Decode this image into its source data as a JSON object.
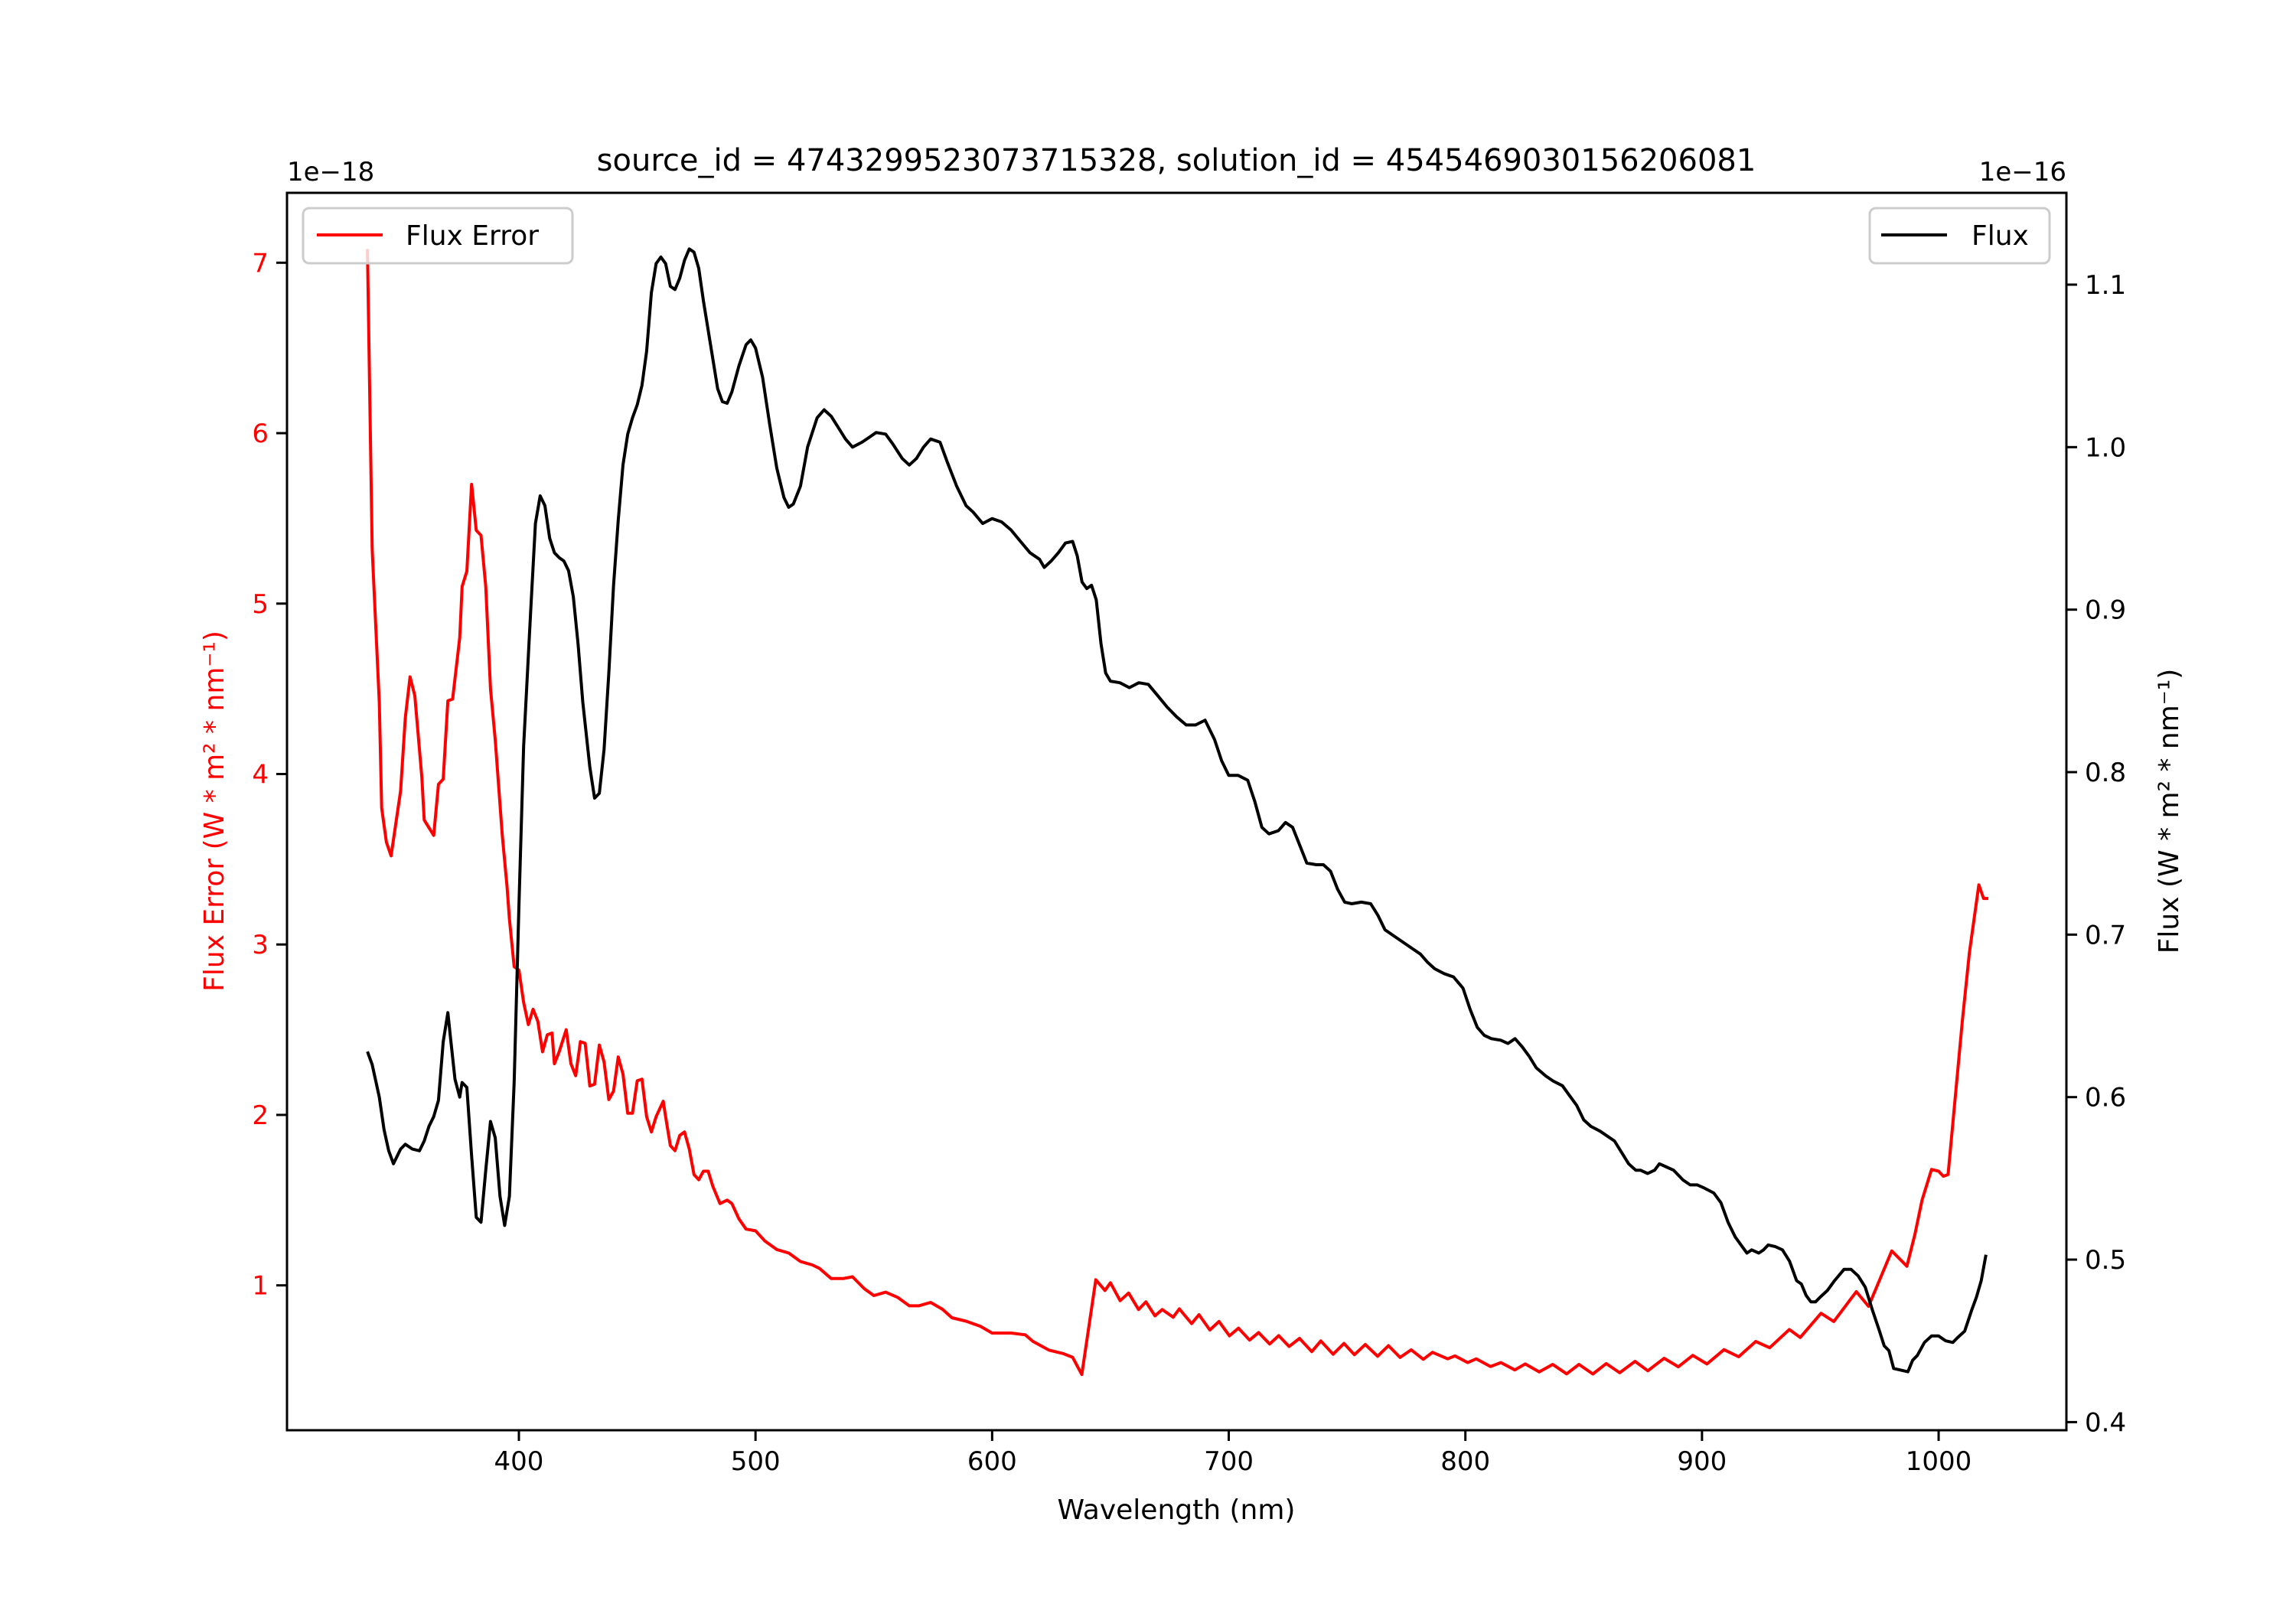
{
  "chart_data": {
    "type": "line",
    "title": "source_id = 4743299523073715328, solution_id = 4545469030156206081",
    "xlabel": "Wavelength (nm)",
    "xlim": [
      302,
      1054
    ],
    "xticks": [
      400,
      500,
      600,
      700,
      800,
      900,
      1000
    ],
    "left_axis": {
      "label": "Flux Error (W * m² * nm⁻¹)",
      "offset_text": "1e−18",
      "ylim": [
        0.15,
        7.41
      ],
      "ticks": [
        1,
        2,
        3,
        4,
        5,
        6,
        7
      ],
      "tick_labels": [
        "1",
        "2",
        "3",
        "4",
        "5",
        "6",
        "7"
      ],
      "color": "#ff0000"
    },
    "right_axis": {
      "label": "Flux (W * m² * nm⁻¹)",
      "offset_text": "1e−16",
      "ylim": [
        0.395,
        1.1565
      ],
      "ticks": [
        0.4,
        0.5,
        0.6,
        0.7,
        0.8,
        0.9,
        1.0,
        1.1
      ],
      "tick_labels": [
        "0.4",
        "0.5",
        "0.6",
        "0.7",
        "0.8",
        "0.9",
        "1.0",
        "1.1"
      ],
      "color": "#000000"
    },
    "series": [
      {
        "name": "Flux Error",
        "axis": "left",
        "color": "#ff0000",
        "legend": "upper-left",
        "x": [
          336,
          338,
          341,
          342,
          344,
          346,
          350,
          352,
          354,
          356,
          359,
          360,
          364,
          366,
          368,
          370,
          372,
          375,
          376,
          378,
          380,
          382,
          384,
          386,
          388,
          390,
          393,
          395,
          396,
          398,
          400,
          402,
          404,
          406,
          408,
          410,
          412,
          414,
          415,
          417,
          420,
          422,
          424,
          426,
          428,
          430,
          432,
          434,
          436,
          438,
          440,
          442,
          444,
          446,
          448,
          450,
          452,
          454,
          456,
          458,
          461,
          462,
          464,
          466,
          468,
          470,
          472,
          474,
          476,
          478,
          480,
          482,
          485,
          488,
          490,
          493,
          496,
          500,
          504,
          509,
          514,
          519,
          524,
          527,
          532,
          537,
          541,
          546,
          550,
          555,
          560,
          565,
          569,
          574,
          579,
          583,
          589,
          595,
          600,
          608,
          614,
          617.3,
          624,
          630,
          634,
          637.9,
          643.8,
          647.7,
          650,
          654.1,
          657.7,
          661.9,
          665,
          668.8,
          671.9,
          676.5,
          679.1,
          684.3,
          687.4,
          692,
          695.9,
          700.3,
          704.1,
          708.8,
          712.6,
          717.3,
          721.1,
          725.5,
          729.9,
          735.1,
          738.9,
          744.1,
          748.7,
          753.1,
          757.7,
          762.9,
          767.5,
          772.4,
          777.1,
          782.2,
          786.1,
          792.5,
          795.6,
          801,
          804.6,
          810.6,
          815,
          820.9,
          825.3,
          831.2,
          836.9,
          842.8,
          848,
          853.9,
          859.5,
          865.2,
          871.7,
          877.1,
          884,
          890,
          896.1,
          902.1,
          909.3,
          915.5,
          922.7,
          928.6,
          936.9,
          941.5,
          950.3,
          955.7,
          965.2,
          970.4,
          980.2,
          986.6,
          990,
          993,
          997,
          1000,
          1002,
          1004,
          1007,
          1010,
          1013,
          1015,
          1017,
          1019,
          1021
        ],
        "y": [
          7.08,
          5.32,
          4.42,
          3.8,
          3.6,
          3.52,
          3.9,
          4.33,
          4.57,
          4.46,
          3.98,
          3.73,
          3.64,
          3.94,
          3.97,
          4.43,
          4.44,
          4.8,
          5.1,
          5.19,
          5.7,
          5.43,
          5.4,
          5.1,
          4.5,
          4.2,
          3.64,
          3.34,
          3.15,
          2.87,
          2.85,
          2.66,
          2.53,
          2.62,
          2.55,
          2.37,
          2.47,
          2.48,
          2.3,
          2.37,
          2.5,
          2.3,
          2.23,
          2.43,
          2.42,
          2.17,
          2.18,
          2.41,
          2.31,
          2.09,
          2.14,
          2.34,
          2.24,
          2.01,
          2.01,
          2.2,
          2.21,
          1.99,
          1.9,
          1.99,
          2.08,
          1.99,
          1.82,
          1.79,
          1.88,
          1.9,
          1.8,
          1.65,
          1.62,
          1.67,
          1.67,
          1.58,
          1.48,
          1.5,
          1.48,
          1.39,
          1.33,
          1.32,
          1.26,
          1.21,
          1.19,
          1.14,
          1.12,
          1.1,
          1.04,
          1.04,
          1.05,
          0.98,
          0.94,
          0.96,
          0.93,
          0.88,
          0.88,
          0.9,
          0.86,
          0.81,
          0.79,
          0.76,
          0.72,
          0.72,
          0.71,
          0.671,
          0.62,
          0.6,
          0.578,
          0.477,
          1.033,
          0.97,
          1.015,
          0.91,
          0.955,
          0.858,
          0.903,
          0.821,
          0.858,
          0.813,
          0.862,
          0.776,
          0.828,
          0.738,
          0.788,
          0.704,
          0.749,
          0.679,
          0.723,
          0.656,
          0.705,
          0.641,
          0.689,
          0.611,
          0.674,
          0.596,
          0.659,
          0.593,
          0.653,
          0.584,
          0.646,
          0.577,
          0.622,
          0.566,
          0.607,
          0.569,
          0.586,
          0.547,
          0.569,
          0.524,
          0.547,
          0.504,
          0.539,
          0.492,
          0.536,
          0.481,
          0.536,
          0.48,
          0.541,
          0.487,
          0.554,
          0.499,
          0.572,
          0.522,
          0.589,
          0.539,
          0.623,
          0.581,
          0.671,
          0.634,
          0.741,
          0.694,
          0.836,
          0.788,
          0.963,
          0.877,
          1.202,
          1.112,
          1.3,
          1.5,
          1.68,
          1.67,
          1.64,
          1.65,
          2.1,
          2.55,
          2.95,
          3.15,
          3.35,
          3.27,
          3.27
        ]
      },
      {
        "name": "Flux",
        "axis": "right",
        "color": "#000000",
        "legend": "upper-right",
        "x": [
          336,
          338,
          341,
          343,
          345,
          347,
          350,
          352,
          355,
          358,
          360,
          362,
          364,
          366,
          368,
          370,
          371,
          373,
          375,
          376,
          378,
          380,
          382,
          384,
          386,
          388,
          390,
          392,
          394,
          396,
          398,
          400,
          402,
          405,
          407,
          409,
          411,
          413,
          415,
          417,
          419,
          421,
          423,
          425,
          427,
          430,
          432,
          434,
          436,
          438,
          440,
          442,
          444,
          446,
          448,
          450,
          452,
          454,
          456,
          458,
          460,
          462,
          464,
          466,
          468,
          470,
          472,
          474,
          476,
          478,
          481,
          484,
          486,
          488,
          490,
          493,
          496,
          498,
          500,
          503,
          506,
          509,
          512,
          514,
          516,
          519,
          522,
          526,
          529,
          532,
          535,
          538,
          541,
          545,
          548,
          551,
          555,
          558,
          562,
          565,
          568,
          571,
          574,
          578,
          581,
          585,
          589,
          592,
          596,
          600,
          604,
          608,
          612,
          616,
          620,
          622,
          625,
          628,
          631,
          634,
          636,
          638,
          640,
          642,
          644,
          646,
          648,
          650,
          654,
          658,
          662,
          666,
          670,
          674,
          678,
          682,
          686,
          690,
          694,
          697,
          700,
          704,
          708,
          711,
          714,
          717,
          721,
          724,
          727,
          730,
          733,
          737,
          740,
          743,
          746,
          749,
          752,
          756,
          760,
          763,
          766,
          770,
          774,
          778,
          781,
          784,
          787,
          791,
          795,
          799,
          802,
          805,
          808,
          811,
          815,
          818,
          821,
          824,
          827,
          830,
          834,
          837,
          841,
          844,
          847,
          850,
          853,
          857,
          860,
          863,
          866,
          869,
          872,
          874,
          877,
          880,
          882,
          885,
          888,
          892,
          895,
          898,
          901,
          905,
          908,
          911,
          914,
          917,
          919,
          921,
          924,
          926,
          928,
          931,
          934,
          937,
          940,
          942,
          944,
          946,
          948,
          950,
          953,
          956,
          960,
          963,
          966,
          969,
          972,
          975,
          977,
          979,
          981,
          984,
          987,
          989,
          991,
          994,
          997,
          1000,
          1003,
          1006,
          1008,
          1011,
          1014,
          1016,
          1018,
          1020
        ],
        "y": [
          0.628,
          0.62,
          0.6,
          0.58,
          0.567,
          0.559,
          0.568,
          0.571,
          0.568,
          0.567,
          0.573,
          0.582,
          0.588,
          0.598,
          0.634,
          0.652,
          0.638,
          0.611,
          0.6,
          0.609,
          0.606,
          0.564,
          0.526,
          0.523,
          0.555,
          0.585,
          0.575,
          0.539,
          0.521,
          0.539,
          0.609,
          0.717,
          0.816,
          0.9,
          0.953,
          0.97,
          0.964,
          0.944,
          0.935,
          0.932,
          0.93,
          0.924,
          0.908,
          0.879,
          0.843,
          0.803,
          0.784,
          0.787,
          0.814,
          0.861,
          0.915,
          0.955,
          0.989,
          1.008,
          1.018,
          1.026,
          1.038,
          1.059,
          1.095,
          1.113,
          1.117,
          1.113,
          1.099,
          1.097,
          1.104,
          1.115,
          1.122,
          1.12,
          1.11,
          1.09,
          1.063,
          1.036,
          1.028,
          1.027,
          1.034,
          1.05,
          1.063,
          1.066,
          1.061,
          1.043,
          1.014,
          0.987,
          0.969,
          0.963,
          0.965,
          0.976,
          1.0,
          1.018,
          1.023,
          1.019,
          1.012,
          1.005,
          1.0,
          1.003,
          1.006,
          1.009,
          1.008,
          1.002,
          0.993,
          0.989,
          0.993,
          1.0,
          1.005,
          1.003,
          0.991,
          0.976,
          0.964,
          0.96,
          0.953,
          0.956,
          0.954,
          0.949,
          0.942,
          0.935,
          0.931,
          0.926,
          0.93,
          0.935,
          0.941,
          0.942,
          0.933,
          0.917,
          0.913,
          0.915,
          0.906,
          0.879,
          0.861,
          0.856,
          0.855,
          0.852,
          0.855,
          0.854,
          0.847,
          0.84,
          0.834,
          0.829,
          0.829,
          0.832,
          0.82,
          0.807,
          0.798,
          0.798,
          0.795,
          0.782,
          0.766,
          0.762,
          0.764,
          0.769,
          0.766,
          0.755,
          0.744,
          0.743,
          0.743,
          0.739,
          0.728,
          0.72,
          0.719,
          0.72,
          0.719,
          0.712,
          0.703,
          0.699,
          0.695,
          0.691,
          0.688,
          0.683,
          0.679,
          0.676,
          0.674,
          0.667,
          0.654,
          0.643,
          0.638,
          0.636,
          0.635,
          0.633,
          0.636,
          0.631,
          0.625,
          0.618,
          0.613,
          0.61,
          0.607,
          0.601,
          0.595,
          0.586,
          0.582,
          0.579,
          0.576,
          0.573,
          0.566,
          0.559,
          0.555,
          0.555,
          0.553,
          0.555,
          0.559,
          0.557,
          0.555,
          0.549,
          0.546,
          0.546,
          0.544,
          0.541,
          0.535,
          0.523,
          0.514,
          0.508,
          0.504,
          0.506,
          0.504,
          0.506,
          0.509,
          0.508,
          0.506,
          0.499,
          0.487,
          0.485,
          0.478,
          0.474,
          0.474,
          0.477,
          0.481,
          0.487,
          0.494,
          0.494,
          0.49,
          0.483,
          0.469,
          0.456,
          0.447,
          0.444,
          0.433,
          0.432,
          0.431,
          0.438,
          0.441,
          0.449,
          0.453,
          0.453,
          0.45,
          0.449,
          0.452,
          0.456,
          0.469,
          0.477,
          0.487,
          0.503
        ]
      }
    ]
  }
}
